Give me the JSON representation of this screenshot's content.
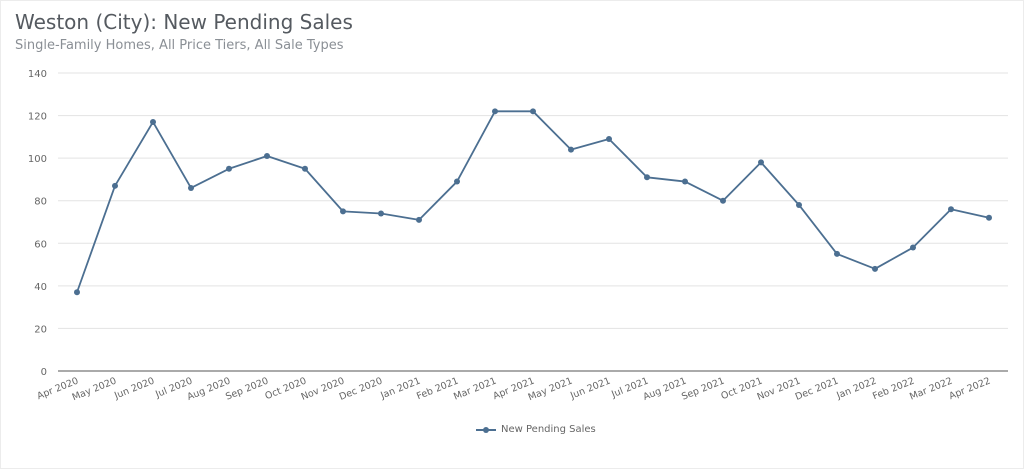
{
  "header": {
    "title": "Weston (City): New Pending Sales",
    "subtitle": "Single-Family Homes, All Price Tiers, All Sale Types"
  },
  "legend": {
    "items": [
      {
        "label": "New Pending Sales",
        "color": "#4c6f91"
      }
    ]
  },
  "colors": {
    "series": "#4c6f91",
    "grid": "#e3e3e3",
    "axis": "#777777",
    "tick_label": "#666666"
  },
  "chart_data": {
    "type": "line",
    "title": "Weston (City): New Pending Sales",
    "subtitle": "Single-Family Homes, All Price Tiers, All Sale Types",
    "xlabel": "",
    "ylabel": "",
    "ylim": [
      0,
      140
    ],
    "yticks": [
      0,
      20,
      40,
      60,
      80,
      100,
      120,
      140
    ],
    "grid": true,
    "legend_position": "bottom",
    "categories": [
      "Apr 2020",
      "May 2020",
      "Jun 2020",
      "Jul 2020",
      "Aug 2020",
      "Sep 2020",
      "Oct 2020",
      "Nov 2020",
      "Dec 2020",
      "Jan 2021",
      "Feb 2021",
      "Mar 2021",
      "Apr 2021",
      "May 2021",
      "Jun 2021",
      "Jul 2021",
      "Aug 2021",
      "Sep 2021",
      "Oct 2021",
      "Nov 2021",
      "Dec 2021",
      "Jan 2022",
      "Feb 2022",
      "Mar 2022",
      "Apr 2022"
    ],
    "series": [
      {
        "name": "New Pending Sales",
        "values": [
          37,
          87,
          117,
          86,
          95,
          101,
          95,
          75,
          74,
          71,
          89,
          122,
          122,
          104,
          109,
          91,
          89,
          80,
          98,
          78,
          55,
          48,
          58,
          76,
          72
        ]
      }
    ]
  }
}
